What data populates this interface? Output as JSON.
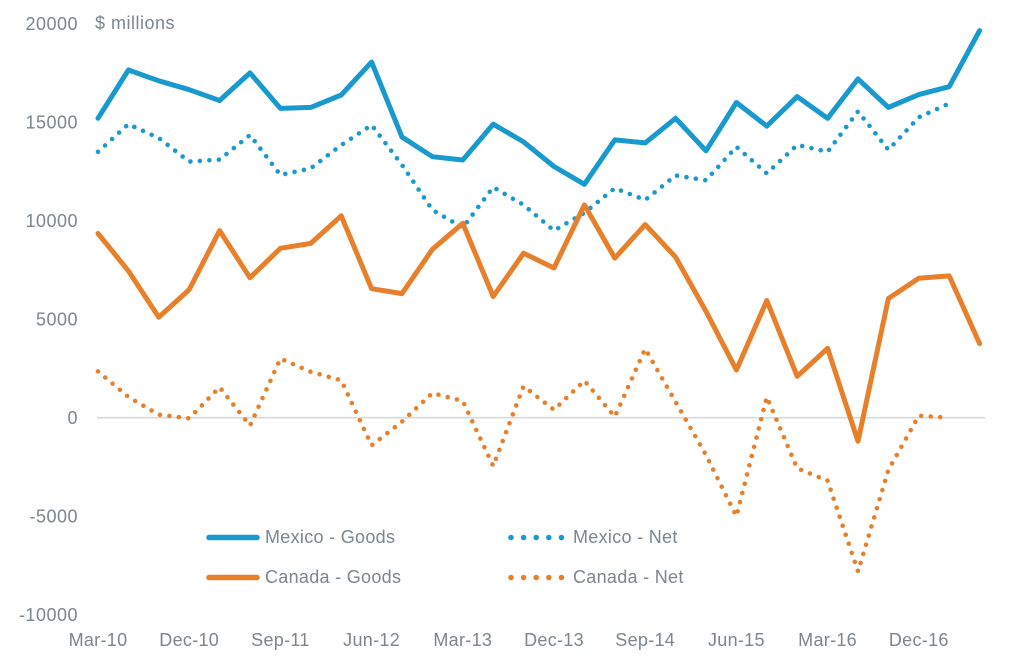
{
  "title": "$ millions",
  "colors": {
    "mexico": "#189ACF",
    "canada": "#E8802B",
    "gridline": "#D9D9D9",
    "text": "#7B868E",
    "background": "#FFFFFF"
  },
  "chart_data": {
    "type": "line",
    "title": "$ millions",
    "unit_label": "$ millions",
    "xlabel": "",
    "ylabel": "$ millions",
    "ylim": [
      -10000,
      20000
    ],
    "grid": "zero-line-only",
    "legend_position": "bottom-center",
    "y_ticks": [
      20000,
      15000,
      10000,
      5000,
      0,
      -5000,
      -10000
    ],
    "x_tick_labels": [
      "Mar-10",
      "Dec-10",
      "Sep-11",
      "Jun-12",
      "Mar-13",
      "Dec-13",
      "Sep-14",
      "Jun-15",
      "Mar-16",
      "Dec-16"
    ],
    "x_tick_step": 3,
    "categories": [
      "Mar-10",
      "Jun-10",
      "Sep-10",
      "Dec-10",
      "Mar-11",
      "Jun-11",
      "Sep-11",
      "Dec-11",
      "Mar-12",
      "Jun-12",
      "Sep-12",
      "Dec-12",
      "Mar-13",
      "Jun-13",
      "Sep-13",
      "Dec-13",
      "Mar-14",
      "Jun-14",
      "Sep-14",
      "Dec-14",
      "Mar-15",
      "Jun-15",
      "Sep-15",
      "Dec-15",
      "Mar-16",
      "Jun-16",
      "Sep-16",
      "Dec-16",
      "Mar-17",
      "Jun-17"
    ],
    "series": [
      {
        "name": "Mexico - Goods",
        "color": "mexico",
        "style": "solid",
        "values": [
          15200,
          17650,
          17100,
          16650,
          16100,
          17500,
          15700,
          15750,
          16380,
          18050,
          14250,
          13250,
          13080,
          14900,
          14000,
          12750,
          11850,
          14100,
          13950,
          15200,
          13550,
          16000,
          14800,
          16300,
          15200,
          17200,
          15750,
          16400,
          16800,
          19650
        ]
      },
      {
        "name": "Mexico - Net",
        "color": "mexico",
        "style": "dotted",
        "values": [
          13500,
          14900,
          14200,
          13000,
          13100,
          14350,
          12320,
          12660,
          13840,
          14860,
          12830,
          10550,
          9650,
          11700,
          10800,
          9500,
          10400,
          11650,
          11050,
          12300,
          12050,
          13750,
          12400,
          13850,
          13500,
          15550,
          13600,
          15250,
          15950
        ]
      },
      {
        "name": "Canada - Goods",
        "color": "canada",
        "style": "solid",
        "values": [
          9350,
          7450,
          5100,
          6500,
          9500,
          7100,
          8600,
          8850,
          10250,
          6550,
          6300,
          8550,
          9870,
          6150,
          8350,
          7600,
          10800,
          8100,
          9800,
          8150,
          5400,
          2420,
          5950,
          2100,
          3520,
          -1200,
          6050,
          7080,
          7200,
          3760
        ]
      },
      {
        "name": "Canada - Net",
        "color": "canada",
        "style": "dotted",
        "values": [
          2350,
          1050,
          150,
          -30,
          1550,
          -400,
          3000,
          2330,
          1900,
          -1400,
          -200,
          1250,
          850,
          -2450,
          1600,
          400,
          1880,
          50,
          3500,
          800,
          -1900,
          -5000,
          1050,
          -2570,
          -3200,
          -7800,
          -2650,
          100,
          0
        ]
      }
    ]
  }
}
